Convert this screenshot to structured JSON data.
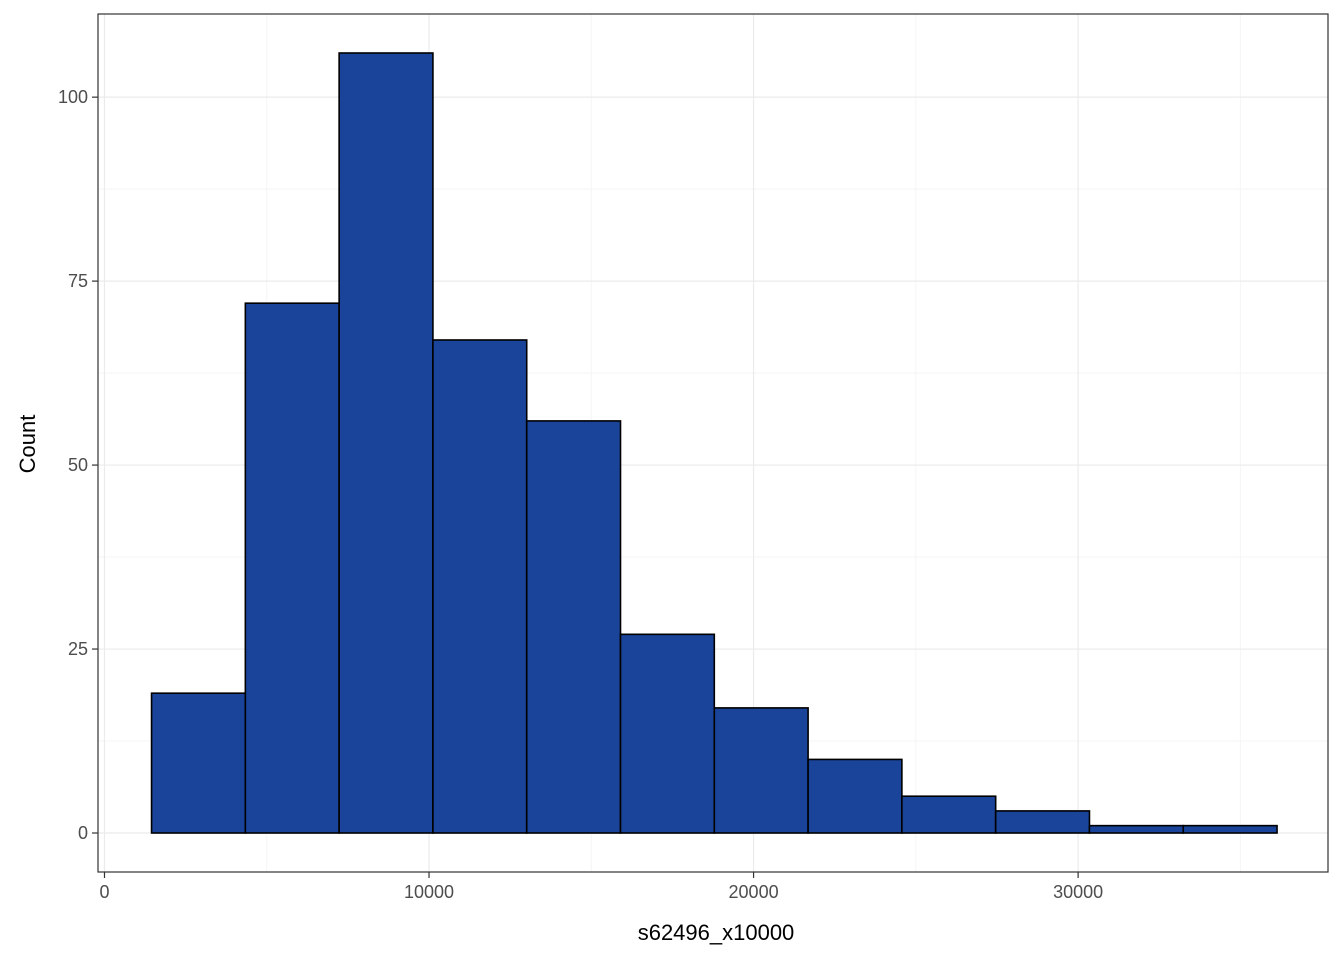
{
  "chart_data": {
    "type": "bar",
    "subtype": "histogram",
    "title": "",
    "xlabel": "s62496_x10000",
    "ylabel": "Count",
    "xlim": [
      -200,
      37700
    ],
    "ylim": [
      -5.3,
      111.3
    ],
    "x_ticks": [
      0,
      10000,
      20000,
      30000
    ],
    "x_tick_labels": [
      "0",
      "10000",
      "20000",
      "30000"
    ],
    "y_ticks": [
      0,
      25,
      50,
      75,
      100
    ],
    "y_tick_labels": [
      "0",
      "25",
      "50",
      "75",
      "100"
    ],
    "grid": true,
    "legend": "none",
    "bins": [
      {
        "x0": 1450,
        "x1": 4340,
        "count": 19
      },
      {
        "x0": 4340,
        "x1": 7230,
        "count": 72
      },
      {
        "x0": 7230,
        "x1": 10120,
        "count": 106
      },
      {
        "x0": 10120,
        "x1": 13010,
        "count": 67
      },
      {
        "x0": 13010,
        "x1": 15900,
        "count": 56
      },
      {
        "x0": 15900,
        "x1": 18790,
        "count": 27
      },
      {
        "x0": 18790,
        "x1": 21680,
        "count": 17
      },
      {
        "x0": 21680,
        "x1": 24570,
        "count": 10
      },
      {
        "x0": 24570,
        "x1": 27460,
        "count": 5
      },
      {
        "x0": 27460,
        "x1": 30350,
        "count": 3
      },
      {
        "x0": 30350,
        "x1": 33240,
        "count": 1
      },
      {
        "x0": 33240,
        "x1": 36130,
        "count": 1
      }
    ],
    "colors": {
      "bar_fill": "#1a4499",
      "bar_stroke": "#000000",
      "grid_major": "#ebebeb",
      "grid_minor": "#f5f5f5",
      "panel_border": "#333333"
    }
  }
}
